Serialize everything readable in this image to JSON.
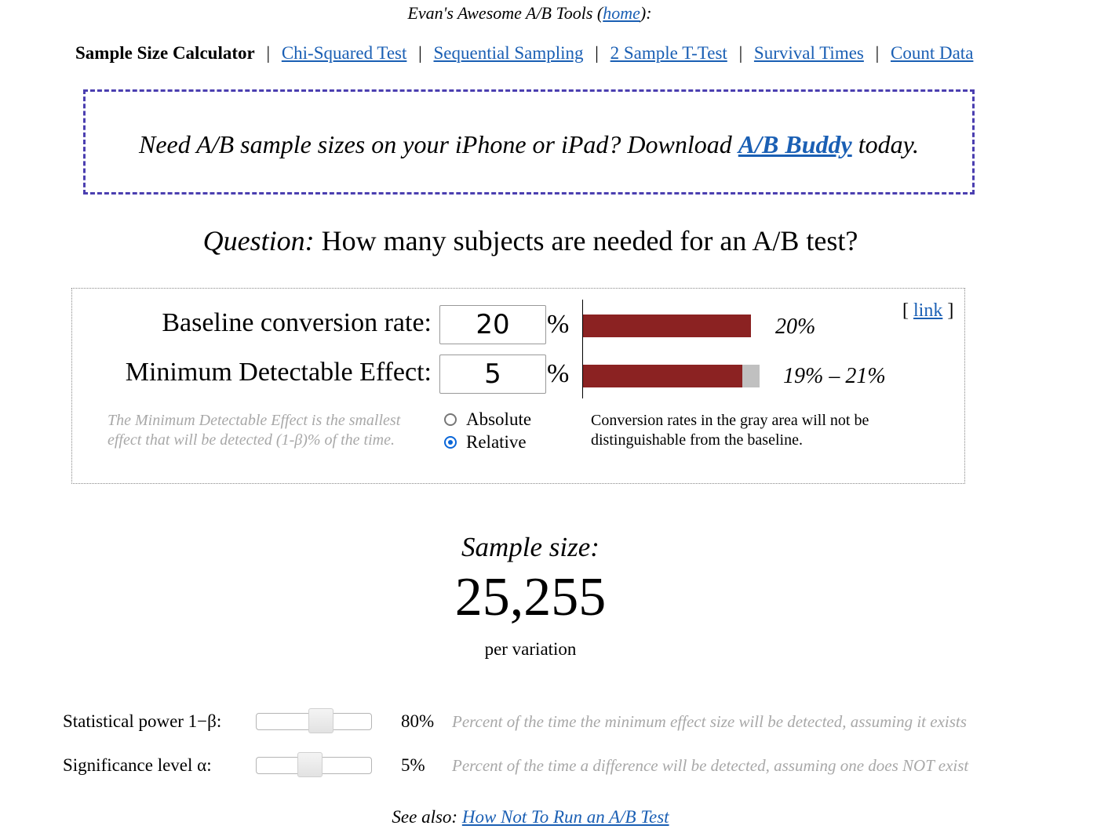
{
  "header": {
    "title_prefix": "Evan's Awesome A/B Tools (",
    "home_link": "home",
    "title_suffix": "):"
  },
  "nav": {
    "current": "Sample Size Calculator",
    "links": [
      "Chi-Squared Test",
      "Sequential Sampling",
      "2 Sample T-Test",
      "Survival Times",
      "Count Data"
    ],
    "separator": "|"
  },
  "promo": {
    "text_before": "Need A/B sample sizes on your iPhone or iPad? Download ",
    "link": "A/B Buddy",
    "text_after": " today."
  },
  "question": {
    "label": "Question:",
    "text": " How many subjects are needed for an A/B test?"
  },
  "form": {
    "baseline_label": "Baseline conversion rate:",
    "baseline_value": "20",
    "mde_label": "Minimum Detectable Effect:",
    "mde_value": "5",
    "percent_sign": "%",
    "baseline_bar_label": "20%",
    "mde_bar_label": "19% – 21%",
    "baseline_fraction": 0.2,
    "mde_low_fraction": 0.19,
    "mde_high_fraction": 0.21,
    "permalink": "link",
    "permalink_open": "[ ",
    "permalink_close": " ]",
    "mde_note": "The Minimum Detectable Effect is the smallest effect that will be detected (1-β)% of the time.",
    "radio_absolute": "Absolute",
    "radio_relative": "Relative",
    "selected_mode": "Relative",
    "gray_note": "Conversion rates in the gray area will not be distinguishable from the baseline.",
    "colors": {
      "bar": "#8b2222",
      "gray": "#c0c0c0"
    }
  },
  "result": {
    "label": "Sample size:",
    "value": "25,255",
    "sub": "per variation"
  },
  "sliders": [
    {
      "label": "Statistical power 1−β:",
      "value": "80%",
      "level": 0.58,
      "desc": "Percent of the time the minimum effect size will be detected, assuming it exists"
    },
    {
      "label": "Significance level α:",
      "value": "5%",
      "level": 0.46,
      "desc": "Percent of the time a difference will be detected, assuming one does NOT exist"
    }
  ],
  "footer": {
    "prefix": "See also: ",
    "link": "How Not To Run an A/B Test"
  }
}
